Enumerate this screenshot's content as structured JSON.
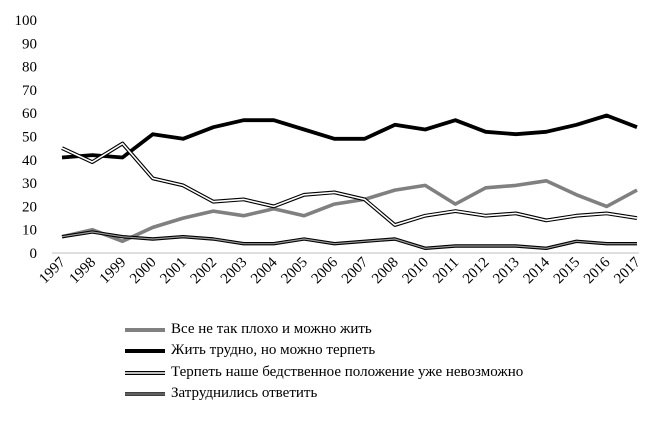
{
  "chart_data": {
    "type": "line",
    "title": "",
    "xlabel": "",
    "ylabel": "",
    "ylim": [
      0,
      100
    ],
    "yticks": [
      0,
      10,
      20,
      30,
      40,
      50,
      60,
      70,
      80,
      90,
      100
    ],
    "categories": [
      "1997",
      "1998",
      "1999",
      "2000",
      "2001",
      "2002",
      "2003",
      "2004",
      "2005",
      "2006",
      "2007",
      "2008",
      "2010",
      "2011",
      "2012",
      "2013",
      "2014",
      "2015",
      "2016",
      "2017"
    ],
    "grid": false,
    "legend_position": "bottom",
    "series": [
      {
        "name": "Все не так плохо и можно жить",
        "style": "thick-gray",
        "color": "#808080",
        "values": [
          7,
          10,
          5,
          11,
          15,
          18,
          16,
          19,
          16,
          21,
          23,
          27,
          29,
          21,
          28,
          29,
          31,
          25,
          20,
          27
        ]
      },
      {
        "name": "Жить трудно, но можно терпеть",
        "style": "thick-black",
        "color": "#000000",
        "values": [
          41,
          42,
          41,
          51,
          49,
          54,
          57,
          57,
          53,
          49,
          49,
          55,
          53,
          57,
          52,
          51,
          52,
          55,
          59,
          54
        ]
      },
      {
        "name": "Терпеть наше бедственное положение уже невозможно",
        "style": "double-line",
        "color": "#000000",
        "values": [
          45,
          39,
          47,
          32,
          29,
          22,
          23,
          20,
          25,
          26,
          23,
          12,
          16,
          18,
          16,
          17,
          14,
          16,
          17,
          15
        ]
      },
      {
        "name": "Затруднились ответить",
        "style": "black-gray-double",
        "color": "#000000",
        "values": [
          7,
          9,
          7,
          6,
          7,
          6,
          4,
          4,
          6,
          4,
          5,
          6,
          2,
          3,
          3,
          3,
          2,
          5,
          4,
          4
        ]
      }
    ]
  }
}
